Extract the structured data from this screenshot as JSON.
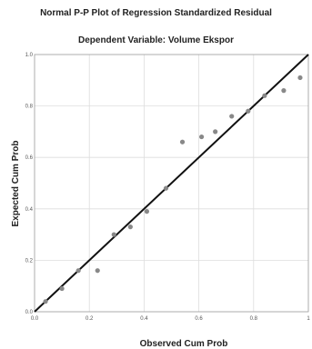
{
  "chart_data": {
    "type": "scatter",
    "title": "Normal P-P Plot of Regression Standardized Residual",
    "subtitle": "Dependent Variable: Volume Ekspor",
    "xlabel": "Observed Cum Prob",
    "ylabel": "Expected Cum Prob",
    "xlim": [
      0,
      1
    ],
    "ylim": [
      0,
      1
    ],
    "x_ticks": [
      "0.0",
      "0.2",
      "0.4",
      "0.6",
      "0.8",
      "1"
    ],
    "y_ticks": [
      "0.0",
      "0.2",
      "0.4",
      "0.6",
      "0.8",
      "1.0"
    ],
    "grid": true,
    "reference_line": {
      "from": [
        0,
        0
      ],
      "to": [
        1,
        1
      ]
    },
    "points": [
      {
        "x": 0.04,
        "y": 0.04
      },
      {
        "x": 0.1,
        "y": 0.09
      },
      {
        "x": 0.16,
        "y": 0.16
      },
      {
        "x": 0.23,
        "y": 0.16
      },
      {
        "x": 0.29,
        "y": 0.3
      },
      {
        "x": 0.35,
        "y": 0.33
      },
      {
        "x": 0.41,
        "y": 0.39
      },
      {
        "x": 0.48,
        "y": 0.48
      },
      {
        "x": 0.54,
        "y": 0.66
      },
      {
        "x": 0.61,
        "y": 0.68
      },
      {
        "x": 0.66,
        "y": 0.7
      },
      {
        "x": 0.72,
        "y": 0.76
      },
      {
        "x": 0.78,
        "y": 0.78
      },
      {
        "x": 0.84,
        "y": 0.84
      },
      {
        "x": 0.91,
        "y": 0.86
      },
      {
        "x": 0.97,
        "y": 0.91
      }
    ],
    "colors": {
      "points": "#888888",
      "line": "#111111",
      "grid": "#dddddd",
      "frame": "#999999"
    }
  }
}
